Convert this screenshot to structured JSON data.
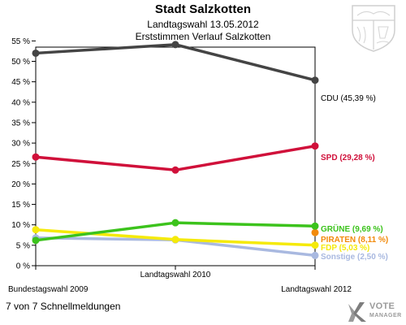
{
  "header": {
    "title": "Stadt Salzkotten",
    "subtitle1": "Landtagswahl 13.05.2012",
    "subtitle2": "Erststimmen Verlauf Salzkotten"
  },
  "footer": {
    "status_text": "7 von 7 Schnellmeldungen",
    "logo_word": "VOTE",
    "logo_sub": "MANAGER"
  },
  "colors": {
    "CDU": "#444444",
    "SPD": "#d0103a",
    "GRÜNE": "#3cc31c",
    "PIRATEN": "#f28a0a",
    "FDP": "#f5ea0a",
    "Sonstige": "#a9b9e0"
  },
  "chart_data": {
    "type": "line",
    "x": [
      "Bundestagswahl 2009",
      "Landtagswahl 2010",
      "Landtagswahl 2012"
    ],
    "ylim": [
      0,
      57
    ],
    "yticks": [
      0,
      5,
      10,
      15,
      20,
      25,
      30,
      35,
      40,
      45,
      50,
      55
    ],
    "ytick_labels": [
      "0 %",
      "5 %",
      "10 %",
      "15 %",
      "20 %",
      "25 %",
      "30 %",
      "35 %",
      "40 %",
      "45 %",
      "50 %",
      "55 %"
    ],
    "grid": false,
    "series": [
      {
        "name": "CDU",
        "values": [
          52.0,
          54.1,
          45.39
        ],
        "label": "CDU (45,39 %)"
      },
      {
        "name": "SPD",
        "values": [
          26.6,
          23.4,
          29.28
        ],
        "label": "SPD (29,28 %)"
      },
      {
        "name": "GRÜNE",
        "values": [
          6.2,
          10.5,
          9.69
        ],
        "label": "GRÜNE (9,69 %)"
      },
      {
        "name": "PIRATEN",
        "values": [
          null,
          null,
          8.11
        ],
        "label": "PIRATEN (8,11 %)"
      },
      {
        "name": "FDP",
        "values": [
          8.8,
          6.4,
          5.03
        ],
        "label": "FDP (5,03 %)"
      },
      {
        "name": "Sonstige",
        "values": [
          6.8,
          6.3,
          2.5
        ],
        "label": "Sonstige (2,50 %)"
      }
    ]
  }
}
